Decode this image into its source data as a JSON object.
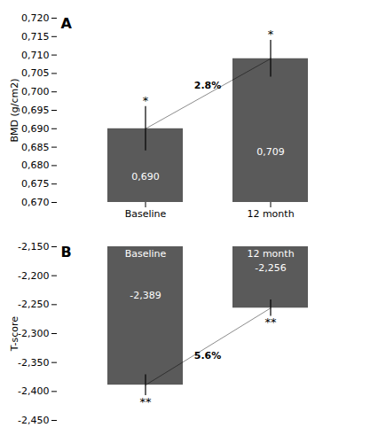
{
  "chart_data": [
    {
      "type": "bar",
      "title": "A",
      "categories": [
        "Baseline",
        "12 month"
      ],
      "values": [
        0.69,
        0.709
      ],
      "value_labels": [
        "0,690",
        "0,709"
      ],
      "data_labels": true,
      "errors": [
        0.006,
        0.005
      ],
      "significance": [
        "*",
        "*"
      ],
      "annotations": [
        "2.8%"
      ],
      "ylabel": "BMD (g/cm2)",
      "ylim": [
        0.67,
        0.72
      ],
      "yticks": [
        {
          "value": 0.67,
          "label": "0,670"
        },
        {
          "value": 0.675,
          "label": "0,675"
        },
        {
          "value": 0.68,
          "label": "0,680"
        },
        {
          "value": 0.685,
          "label": "0,685"
        },
        {
          "value": 0.69,
          "label": "0,690"
        },
        {
          "value": 0.695,
          "label": "0,695"
        },
        {
          "value": 0.7,
          "label": "0,700"
        },
        {
          "value": 0.705,
          "label": "0,705"
        },
        {
          "value": 0.71,
          "label": "0,710"
        },
        {
          "value": 0.715,
          "label": "0,715"
        },
        {
          "value": 0.72,
          "label": "0,720"
        }
      ],
      "color": "#5a5a5a"
    },
    {
      "type": "bar",
      "title": "B",
      "categories": [
        "Baseline",
        "12 month"
      ],
      "values": [
        -2.389,
        -2.256
      ],
      "value_labels": [
        "-2,389",
        "-2,256"
      ],
      "data_labels": true,
      "errors": [
        0.018,
        0.014
      ],
      "significance": [
        "**",
        "**"
      ],
      "annotations": [
        "5.6%"
      ],
      "ylabel": "T-score",
      "ylim": [
        -2.45,
        -2.15
      ],
      "yticks": [
        {
          "value": -2.45,
          "label": "-2,450"
        },
        {
          "value": -2.4,
          "label": "-2,400"
        },
        {
          "value": -2.35,
          "label": "-2,350"
        },
        {
          "value": -2.3,
          "label": "-2,300"
        },
        {
          "value": -2.25,
          "label": "-2,250"
        },
        {
          "value": -2.2,
          "label": "-2,200"
        },
        {
          "value": -2.15,
          "label": "-2,150"
        }
      ],
      "color": "#5a5a5a",
      "tick_labels": "y"
    }
  ]
}
